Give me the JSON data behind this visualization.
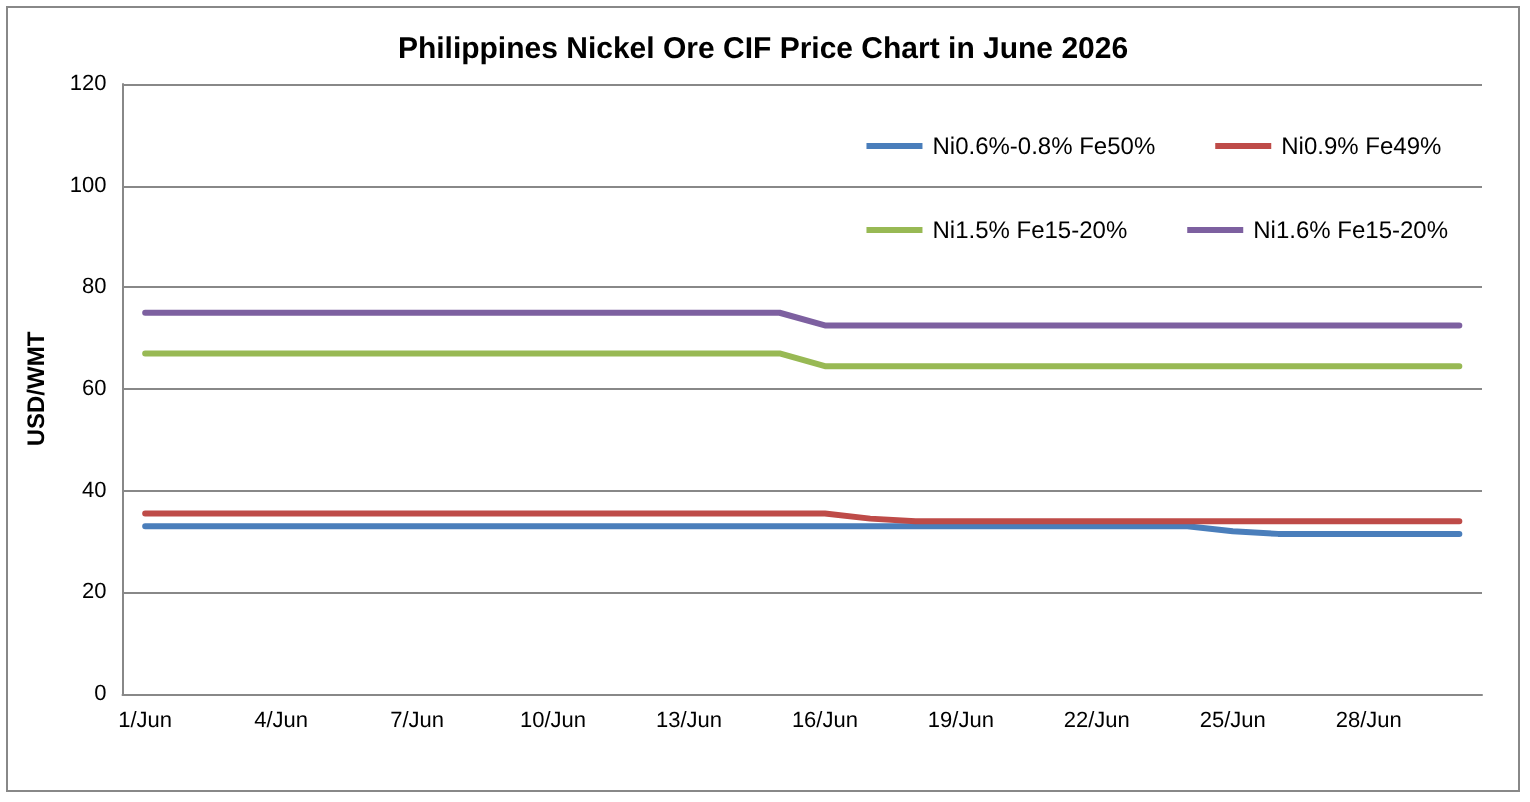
{
  "chart_data": {
    "type": "line",
    "title": "Philippines Nickel Ore CIF Price Chart in June 2026",
    "ylabel": "USD/WMT",
    "categories": [
      "1/Jun",
      null,
      null,
      "4/Jun",
      null,
      null,
      "7/Jun",
      null,
      null,
      "10/Jun",
      null,
      null,
      "13/Jun",
      null,
      null,
      "16/Jun",
      null,
      null,
      "19/Jun",
      null,
      null,
      "22/Jun",
      null,
      null,
      "25/Jun",
      null,
      null,
      "28/Jun",
      null,
      null
    ],
    "series": [
      {
        "name": "Ni0.6%-0.8% Fe50%",
        "color": "#4a7ebb",
        "values": [
          33,
          33,
          33,
          33,
          33,
          33,
          33,
          33,
          33,
          33,
          33,
          33,
          33,
          33,
          33,
          33,
          33,
          33,
          33,
          33,
          33,
          33,
          33,
          33,
          32,
          31.5,
          31.5,
          31.5,
          31.5,
          31.5
        ]
      },
      {
        "name": "Ni0.9% Fe49%",
        "color": "#be4b48",
        "values": [
          35.5,
          35.5,
          35.5,
          35.5,
          35.5,
          35.5,
          35.5,
          35.5,
          35.5,
          35.5,
          35.5,
          35.5,
          35.5,
          35.5,
          35.5,
          35.5,
          34.5,
          34,
          34,
          34,
          34,
          34,
          34,
          34,
          34,
          34,
          34,
          34,
          34,
          34
        ]
      },
      {
        "name": "Ni1.5% Fe15-20%",
        "color": "#98b954",
        "values": [
          67,
          67,
          67,
          67,
          67,
          67,
          67,
          67,
          67,
          67,
          67,
          67,
          67,
          67,
          67,
          64.5,
          64.5,
          64.5,
          64.5,
          64.5,
          64.5,
          64.5,
          64.5,
          64.5,
          64.5,
          64.5,
          64.5,
          64.5,
          64.5,
          64.5
        ]
      },
      {
        "name": "Ni1.6% Fe15-20%",
        "color": "#7d60a0",
        "values": [
          75,
          75,
          75,
          75,
          75,
          75,
          75,
          75,
          75,
          75,
          75,
          75,
          75,
          75,
          75,
          72.5,
          72.5,
          72.5,
          72.5,
          72.5,
          72.5,
          72.5,
          72.5,
          72.5,
          72.5,
          72.5,
          72.5,
          72.5,
          72.5,
          72.5
        ]
      }
    ],
    "ylim": [
      0,
      120
    ],
    "yticks": [
      0,
      20,
      40,
      60,
      80,
      100,
      120
    ],
    "grid": "y",
    "legend": "top right",
    "marker": "none",
    "line_style": "solid"
  }
}
